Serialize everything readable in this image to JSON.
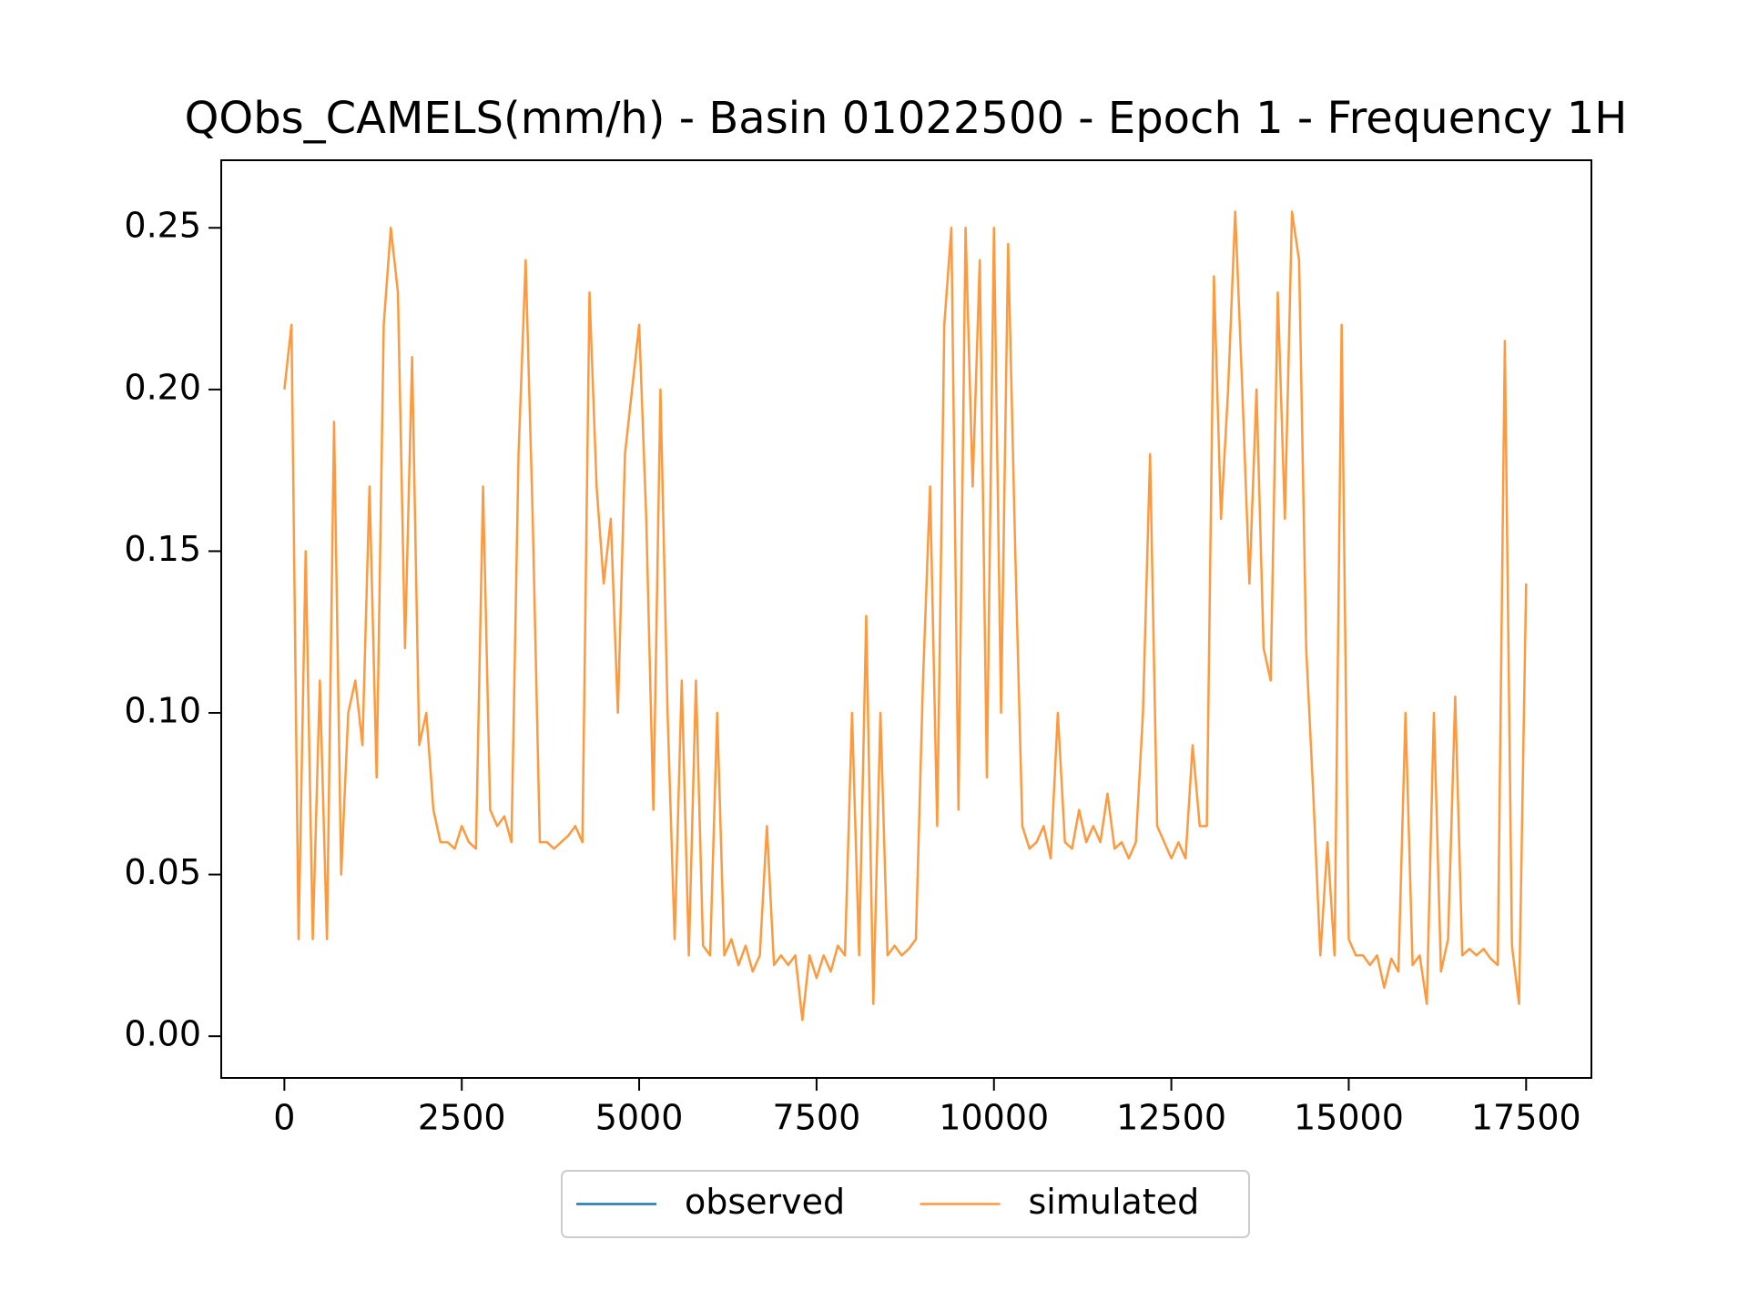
{
  "chart_data": {
    "type": "line",
    "title": "QObs_CAMELS(mm/h) - Basin 01022500 - Epoch 1 - Frequency 1H",
    "x": [
      0,
      100,
      200,
      300,
      400,
      500,
      600,
      700,
      800,
      900,
      1000,
      1100,
      1200,
      1300,
      1400,
      1500,
      1600,
      1700,
      1800,
      1900,
      2000,
      2100,
      2200,
      2300,
      2400,
      2500,
      2600,
      2700,
      2800,
      2900,
      3000,
      3100,
      3200,
      3300,
      3400,
      3500,
      3600,
      3700,
      3800,
      3900,
      4000,
      4100,
      4200,
      4300,
      4400,
      4500,
      4600,
      4700,
      4800,
      4900,
      5000,
      5100,
      5200,
      5300,
      5400,
      5500,
      5600,
      5700,
      5800,
      5900,
      6000,
      6100,
      6200,
      6300,
      6400,
      6500,
      6600,
      6700,
      6800,
      6900,
      7000,
      7100,
      7200,
      7300,
      7400,
      7500,
      7600,
      7700,
      7800,
      7900,
      8000,
      8100,
      8200,
      8300,
      8400,
      8500,
      8600,
      8700,
      8800,
      8900,
      9000,
      9100,
      9200,
      9300,
      9400,
      9500,
      9600,
      9700,
      9800,
      9900,
      10000,
      10100,
      10200,
      10300,
      10400,
      10500,
      10600,
      10700,
      10800,
      10900,
      11000,
      11100,
      11200,
      11300,
      11400,
      11500,
      11600,
      11700,
      11800,
      11900,
      12000,
      12100,
      12200,
      12300,
      12400,
      12500,
      12600,
      12700,
      12800,
      12900,
      13000,
      13100,
      13200,
      13300,
      13400,
      13500,
      13600,
      13700,
      13800,
      13900,
      14000,
      14100,
      14200,
      14300,
      14400,
      14500,
      14600,
      14700,
      14800,
      14900,
      15000,
      15100,
      15200,
      15300,
      15400,
      15500,
      15600,
      15700,
      15800,
      15900,
      16000,
      16100,
      16200,
      16300,
      16400,
      16500,
      16600,
      16700,
      16800,
      16900,
      17000,
      17100,
      17200,
      17300,
      17400,
      17500
    ],
    "series": [
      {
        "name": "observed",
        "color": "#1f77b4",
        "values": [
          null,
          null,
          null,
          null,
          null,
          null,
          null,
          null,
          null,
          null,
          null,
          null,
          null,
          null,
          null,
          null,
          null,
          null,
          null,
          null,
          null,
          null,
          null,
          null,
          null,
          null,
          null,
          null,
          null,
          null,
          null,
          null,
          null,
          null,
          null,
          null,
          null,
          null,
          null,
          null,
          null,
          null,
          null,
          null,
          null,
          null,
          null,
          null,
          null,
          null,
          null,
          null,
          null,
          null,
          null,
          null,
          null,
          null,
          null,
          null,
          null,
          null,
          null,
          null,
          null,
          null,
          null,
          null,
          null,
          null,
          null,
          null,
          null,
          null,
          null,
          null,
          null,
          null,
          null,
          null,
          null,
          null,
          null,
          null,
          null,
          null,
          null,
          null,
          null,
          null,
          null,
          null,
          null,
          null,
          null,
          null,
          null,
          null,
          null,
          null,
          null,
          null,
          null,
          null,
          null,
          null,
          null,
          null,
          null,
          null,
          null,
          null,
          null,
          null,
          null,
          null,
          null,
          null,
          null,
          null,
          null,
          null,
          null,
          null,
          null,
          null,
          null,
          null,
          null,
          null,
          null,
          null,
          null,
          null,
          null,
          null,
          null,
          null,
          null,
          null,
          null,
          null,
          null,
          null,
          null,
          null,
          null,
          null,
          null,
          null,
          null,
          null,
          null,
          null,
          null,
          null,
          null,
          null,
          null,
          null,
          null,
          null,
          null,
          null,
          null,
          null,
          null,
          null,
          null,
          null,
          null,
          null,
          null,
          null,
          null,
          null
        ]
      },
      {
        "name": "simulated",
        "color": "#ff7f0e",
        "values": [
          0.2,
          0.22,
          0.03,
          0.15,
          0.03,
          0.11,
          0.03,
          0.19,
          0.05,
          0.1,
          0.11,
          0.09,
          0.17,
          0.08,
          0.22,
          0.25,
          0.23,
          0.12,
          0.21,
          0.09,
          0.1,
          0.07,
          0.06,
          0.06,
          0.058,
          0.065,
          0.06,
          0.058,
          0.17,
          0.07,
          0.065,
          0.068,
          0.06,
          0.18,
          0.24,
          0.16,
          0.06,
          0.06,
          0.058,
          0.06,
          0.062,
          0.065,
          0.06,
          0.23,
          0.17,
          0.14,
          0.16,
          0.1,
          0.18,
          0.2,
          0.22,
          0.16,
          0.07,
          0.2,
          0.1,
          0.03,
          0.11,
          0.025,
          0.11,
          0.028,
          0.025,
          0.1,
          0.025,
          0.03,
          0.022,
          0.028,
          0.02,
          0.025,
          0.065,
          0.022,
          0.025,
          0.022,
          0.025,
          0.005,
          0.025,
          0.018,
          0.025,
          0.02,
          0.028,
          0.025,
          0.1,
          0.025,
          0.13,
          0.01,
          0.1,
          0.025,
          0.028,
          0.025,
          0.027,
          0.03,
          0.11,
          0.17,
          0.065,
          0.22,
          0.25,
          0.07,
          0.25,
          0.17,
          0.24,
          0.08,
          0.25,
          0.1,
          0.245,
          0.15,
          0.065,
          0.058,
          0.06,
          0.065,
          0.055,
          0.1,
          0.06,
          0.058,
          0.07,
          0.06,
          0.065,
          0.06,
          0.075,
          0.058,
          0.06,
          0.055,
          0.06,
          0.1,
          0.18,
          0.065,
          0.06,
          0.055,
          0.06,
          0.055,
          0.09,
          0.065,
          0.065,
          0.235,
          0.16,
          0.2,
          0.255,
          0.2,
          0.14,
          0.2,
          0.12,
          0.11,
          0.23,
          0.16,
          0.255,
          0.24,
          0.12,
          0.075,
          0.025,
          0.06,
          0.025,
          0.22,
          0.03,
          0.025,
          0.025,
          0.022,
          0.025,
          0.015,
          0.024,
          0.02,
          0.1,
          0.022,
          0.025,
          0.01,
          0.1,
          0.02,
          0.03,
          0.105,
          0.025,
          0.027,
          0.025,
          0.027,
          0.024,
          0.022,
          0.215,
          0.028,
          0.01,
          0.14
        ]
      }
    ],
    "xlim": [
      -890,
      18420
    ],
    "ylim": [
      -0.0129,
      0.2709
    ],
    "xticks": [
      0,
      2500,
      5000,
      7500,
      10000,
      12500,
      15000,
      17500
    ],
    "yticks": [
      {
        "value": 0,
        "label": "0.00"
      },
      0.05,
      {
        "value": 0.1,
        "label": "0.10"
      },
      0.15,
      {
        "value": 0.2,
        "label": "0.20"
      },
      0.25
    ],
    "legend": "bottom-center"
  }
}
